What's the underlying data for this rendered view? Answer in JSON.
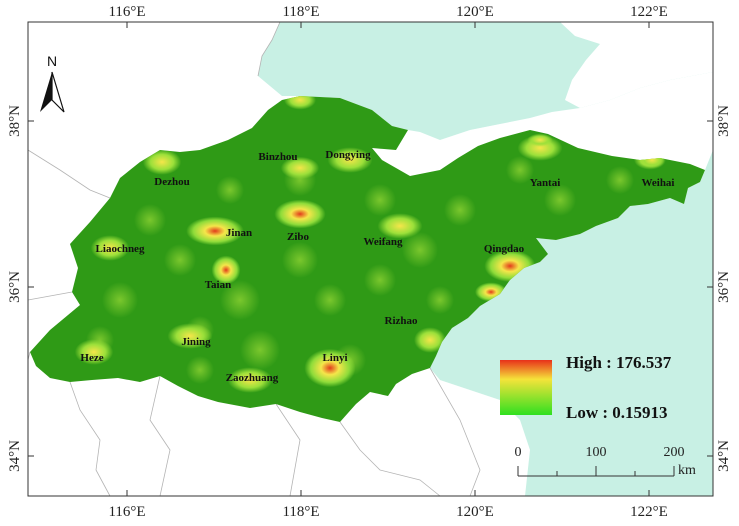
{
  "map": {
    "colors": {
      "sea": "#c8f0e4",
      "land_outside": "#ffffff",
      "province_low": "#2f9a16",
      "province_mid": "#7bd43a",
      "hotspot": "#f5e64a",
      "hotspot_core": "#e23b1a",
      "border": "#b4b4b4"
    },
    "longitude_labels": [
      "116°E",
      "118°E",
      "120°E",
      "122°E"
    ],
    "latitude_labels": [
      "38°N",
      "36°N",
      "34°N"
    ],
    "north_arrow_label": "N",
    "cities": [
      {
        "name": "Dezhou"
      },
      {
        "name": "Binzhou"
      },
      {
        "name": "Dongying"
      },
      {
        "name": "Yantai"
      },
      {
        "name": "Weihai"
      },
      {
        "name": "Liaochneg"
      },
      {
        "name": "Jinan"
      },
      {
        "name": "Zibo"
      },
      {
        "name": "Weifang"
      },
      {
        "name": "Qingdao"
      },
      {
        "name": "Taian"
      },
      {
        "name": "Rizhao"
      },
      {
        "name": "Heze"
      },
      {
        "name": "Jining"
      },
      {
        "name": "Linyi"
      },
      {
        "name": "Zaozhuang"
      }
    ],
    "legend": {
      "high_label": "High : 176.537",
      "low_label": "Low : 0.15913",
      "high_value": 176.537,
      "low_value": 0.15913
    },
    "scale_bar": {
      "ticks": [
        "0",
        "100",
        "200"
      ],
      "unit": "km"
    }
  }
}
